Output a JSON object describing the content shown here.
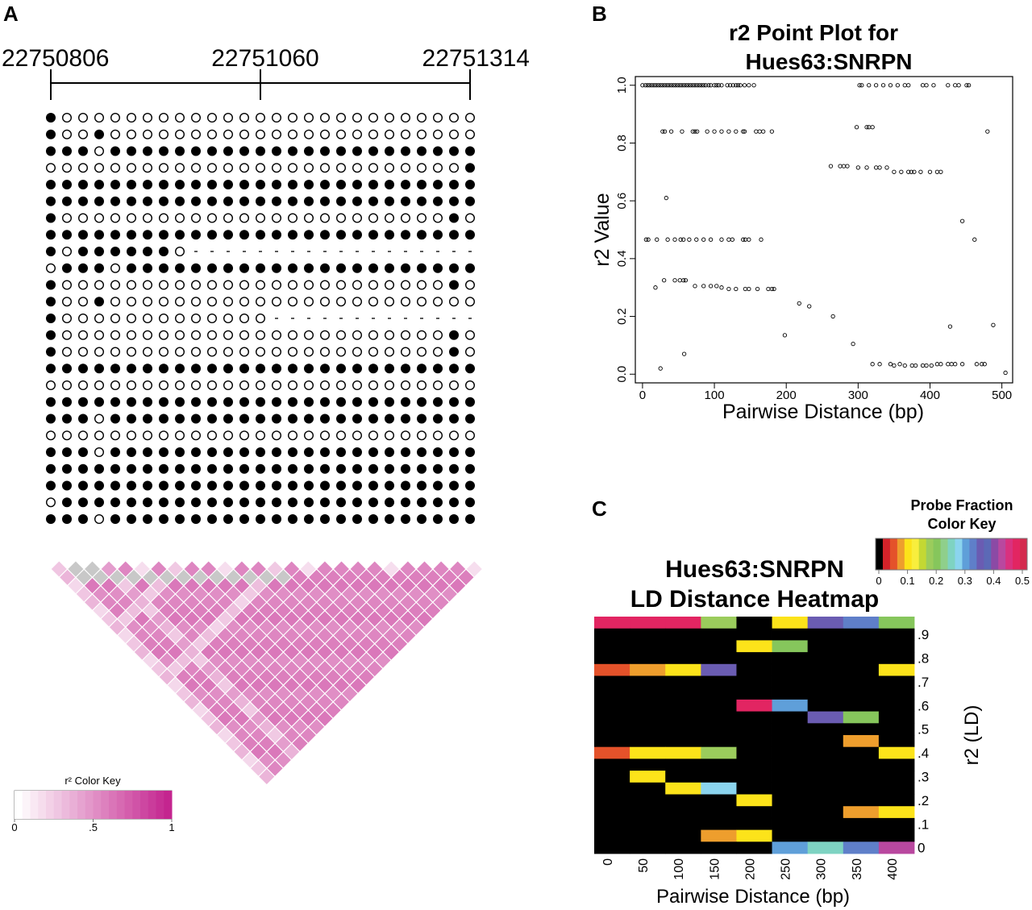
{
  "panels": {
    "a": "A",
    "b": "B",
    "c": "C"
  },
  "chart_data": [
    {
      "id": "A-methylation",
      "type": "table",
      "ruler_labels": [
        "22750806",
        "22751060",
        "22751314"
      ],
      "columns": 27,
      "row_encoding": "1 = filled circle (methylated), 0 = open circle (unmethylated), - = dash (missing)",
      "rows": [
        "100000000000000000000000000",
        "100100000000000000000000000",
        "111011111111111111111111111",
        "000000000000000000000000001",
        "111111111111111111111111111",
        "111111111111111111111111111",
        "100000000000000000000000010",
        "111111111111111111111111111",
        "101111110------------------",
        "011101111111111111111111111",
        "100000000000000000000000010",
        "100100000000000000000000000",
        "10000000000000-------------",
        "100000000000000000000000010",
        "100000000000000000000000010",
        "111111111111111111111111111",
        "000000000000000000000000000",
        "111111111111111111111111111",
        "111011111111111111111111111",
        "000000000000000000000000000",
        "111011111111111111111111111",
        "111111111111111111111111111",
        "111111111111111111111111111",
        "011111111111111111111111111",
        "111011111111111111111111111"
      ],
      "ld_triangle": {
        "colormap": "white to magenta",
        "missing_color": "#c8c8c8",
        "typical_r2": 0.6
      },
      "color_key": {
        "title": "r² Color Key",
        "ticks": [
          "0",
          ".5",
          "1"
        ],
        "low_color": "#ffffff",
        "high_color": "#c4258f"
      }
    },
    {
      "id": "B-point-plot",
      "type": "scatter",
      "title": "r2 Point Plot for",
      "subtitle": "Hues63:SNRPN",
      "xlabel": "Pairwise Distance (bp)",
      "ylabel": "r2 Value",
      "xlim": [
        -10,
        515
      ],
      "ylim": [
        -0.03,
        1.03
      ],
      "xticks": [
        0,
        100,
        200,
        300,
        400,
        500
      ],
      "yticks": [
        0.0,
        0.2,
        0.4,
        0.6,
        0.8,
        1.0
      ],
      "points": [
        [
          0,
          1
        ],
        [
          4,
          1
        ],
        [
          7,
          1
        ],
        [
          10,
          1
        ],
        [
          13,
          1
        ],
        [
          16,
          1
        ],
        [
          19,
          1
        ],
        [
          22,
          1
        ],
        [
          25,
          1
        ],
        [
          28,
          1
        ],
        [
          31,
          1
        ],
        [
          34,
          1
        ],
        [
          37,
          1
        ],
        [
          40,
          1
        ],
        [
          43,
          1
        ],
        [
          46,
          1
        ],
        [
          49,
          1
        ],
        [
          52,
          1
        ],
        [
          55,
          1
        ],
        [
          58,
          1
        ],
        [
          61,
          1
        ],
        [
          64,
          1
        ],
        [
          67,
          1
        ],
        [
          70,
          1
        ],
        [
          73,
          1
        ],
        [
          76,
          1
        ],
        [
          79,
          1
        ],
        [
          82,
          1
        ],
        [
          85,
          1
        ],
        [
          88,
          1
        ],
        [
          92,
          1
        ],
        [
          95,
          1
        ],
        [
          100,
          1
        ],
        [
          103,
          1
        ],
        [
          106,
          1
        ],
        [
          110,
          1
        ],
        [
          118,
          1
        ],
        [
          122,
          1
        ],
        [
          126,
          1
        ],
        [
          130,
          1
        ],
        [
          133,
          1
        ],
        [
          136,
          1
        ],
        [
          142,
          1
        ],
        [
          148,
          1
        ],
        [
          155,
          1
        ],
        [
          302,
          1
        ],
        [
          305,
          1
        ],
        [
          315,
          1
        ],
        [
          325,
          1
        ],
        [
          335,
          1
        ],
        [
          345,
          1
        ],
        [
          355,
          1
        ],
        [
          365,
          1
        ],
        [
          370,
          1
        ],
        [
          390,
          1
        ],
        [
          395,
          1
        ],
        [
          405,
          1
        ],
        [
          425,
          1
        ],
        [
          435,
          1
        ],
        [
          440,
          1
        ],
        [
          451,
          1
        ],
        [
          454,
          1
        ],
        [
          28,
          0.84
        ],
        [
          31,
          0.84
        ],
        [
          40,
          0.84
        ],
        [
          55,
          0.84
        ],
        [
          70,
          0.84
        ],
        [
          73,
          0.84
        ],
        [
          76,
          0.84
        ],
        [
          90,
          0.84
        ],
        [
          100,
          0.84
        ],
        [
          110,
          0.84
        ],
        [
          120,
          0.84
        ],
        [
          130,
          0.84
        ],
        [
          140,
          0.84
        ],
        [
          142,
          0.84
        ],
        [
          158,
          0.84
        ],
        [
          163,
          0.84
        ],
        [
          168,
          0.84
        ],
        [
          180,
          0.84
        ],
        [
          480,
          0.84
        ],
        [
          298,
          0.855
        ],
        [
          312,
          0.855
        ],
        [
          315,
          0.855
        ],
        [
          320,
          0.855
        ],
        [
          262,
          0.72
        ],
        [
          275,
          0.72
        ],
        [
          280,
          0.72
        ],
        [
          285,
          0.72
        ],
        [
          300,
          0.715
        ],
        [
          312,
          0.715
        ],
        [
          325,
          0.715
        ],
        [
          330,
          0.715
        ],
        [
          340,
          0.715
        ],
        [
          350,
          0.7
        ],
        [
          360,
          0.7
        ],
        [
          370,
          0.7
        ],
        [
          374,
          0.7
        ],
        [
          378,
          0.7
        ],
        [
          387,
          0.7
        ],
        [
          400,
          0.7
        ],
        [
          410,
          0.7
        ],
        [
          415,
          0.7
        ],
        [
          33,
          0.61
        ],
        [
          5,
          0.466
        ],
        [
          8,
          0.466
        ],
        [
          20,
          0.466
        ],
        [
          35,
          0.466
        ],
        [
          45,
          0.466
        ],
        [
          53,
          0.466
        ],
        [
          57,
          0.466
        ],
        [
          65,
          0.466
        ],
        [
          75,
          0.466
        ],
        [
          85,
          0.466
        ],
        [
          95,
          0.466
        ],
        [
          110,
          0.466
        ],
        [
          120,
          0.466
        ],
        [
          125,
          0.466
        ],
        [
          140,
          0.466
        ],
        [
          143,
          0.466
        ],
        [
          148,
          0.466
        ],
        [
          165,
          0.466
        ],
        [
          462,
          0.466
        ],
        [
          445,
          0.53
        ],
        [
          30,
          0.325
        ],
        [
          45,
          0.325
        ],
        [
          52,
          0.325
        ],
        [
          57,
          0.325
        ],
        [
          60,
          0.325
        ],
        [
          18,
          0.3
        ],
        [
          73,
          0.305
        ],
        [
          85,
          0.305
        ],
        [
          95,
          0.305
        ],
        [
          103,
          0.305
        ],
        [
          110,
          0.3
        ],
        [
          120,
          0.295
        ],
        [
          130,
          0.295
        ],
        [
          143,
          0.295
        ],
        [
          148,
          0.295
        ],
        [
          160,
          0.295
        ],
        [
          175,
          0.295
        ],
        [
          180,
          0.295
        ],
        [
          183,
          0.295
        ],
        [
          218,
          0.245
        ],
        [
          232,
          0.235
        ],
        [
          265,
          0.2
        ],
        [
          198,
          0.135
        ],
        [
          293,
          0.105
        ],
        [
          58,
          0.07
        ],
        [
          25,
          0.02
        ],
        [
          428,
          0.165
        ],
        [
          488,
          0.17
        ],
        [
          320,
          0.035
        ],
        [
          330,
          0.035
        ],
        [
          345,
          0.035
        ],
        [
          350,
          0.03
        ],
        [
          358,
          0.035
        ],
        [
          365,
          0.03
        ],
        [
          375,
          0.03
        ],
        [
          380,
          0.03
        ],
        [
          390,
          0.03
        ],
        [
          395,
          0.03
        ],
        [
          402,
          0.03
        ],
        [
          410,
          0.035
        ],
        [
          415,
          0.035
        ],
        [
          425,
          0.035
        ],
        [
          430,
          0.035
        ],
        [
          435,
          0.035
        ],
        [
          445,
          0.035
        ],
        [
          465,
          0.035
        ],
        [
          472,
          0.035
        ],
        [
          476,
          0.035
        ],
        [
          505,
          0.005
        ]
      ]
    },
    {
      "id": "C-heatmap",
      "type": "heatmap",
      "title_line1": "Hues63:SNRPN",
      "title_line2": "LD Distance Heatmap",
      "xlabel": "Pairwise Distance (bp)",
      "ylabel": "r2 (LD)",
      "x_tick_labels": [
        "0",
        "50",
        "100",
        "150",
        "200",
        "250",
        "300",
        "350",
        "400"
      ],
      "x_tick_indices": [
        0.5,
        1.5,
        2.5,
        3.5,
        4.5,
        5.5,
        6.5,
        7.5,
        8.5
      ],
      "y_tick_labels": [
        ".9",
        ".8",
        ".7",
        ".6",
        ".5",
        ".4",
        ".3",
        ".2",
        ".1",
        "0"
      ],
      "y_tick_rows": [
        1,
        3,
        5,
        7,
        9,
        11,
        13,
        15,
        17,
        19
      ],
      "n_cols": 9,
      "n_rows": 20,
      "palette": [
        "#000000",
        "#d32229",
        "#e4522a",
        "#ee9e2d",
        "#fce31a",
        "#f8ee3d",
        "#c3d833",
        "#9bcc5c",
        "#86c65c",
        "#8fcf8b",
        "#7ed3c2",
        "#8bd4ee",
        "#5f9fd9",
        "#5f7fc9",
        "#6a5cb2",
        "#5c69b6",
        "#8b4aa5",
        "#b9489f",
        "#d9317f",
        "#e22562",
        "#d42b4e"
      ],
      "fraction_range": [
        0,
        0.5
      ],
      "cells": [
        [
          0.47,
          0.47,
          0.47,
          0.17,
          0,
          0.1,
          0.35,
          0.32,
          0.2
        ],
        [
          0,
          0,
          0,
          0,
          0,
          0,
          0,
          0,
          0
        ],
        [
          0,
          0,
          0,
          0,
          0.1,
          0.2,
          0,
          0,
          0
        ],
        [
          0,
          0,
          0,
          0,
          0,
          0,
          0,
          0,
          0
        ],
        [
          0.05,
          0.07,
          0.09,
          0.35,
          0,
          0,
          0,
          0,
          0.1
        ],
        [
          0,
          0,
          0,
          0,
          0,
          0,
          0,
          0,
          0
        ],
        [
          0,
          0,
          0,
          0,
          0,
          0,
          0,
          0,
          0
        ],
        [
          0,
          0,
          0,
          0,
          0.47,
          0.3,
          0,
          0,
          0
        ],
        [
          0,
          0,
          0,
          0,
          0,
          0,
          0.35,
          0.2,
          0
        ],
        [
          0,
          0,
          0,
          0,
          0,
          0,
          0,
          0,
          0
        ],
        [
          0,
          0,
          0,
          0,
          0,
          0,
          0,
          0.07,
          0
        ],
        [
          0.05,
          0.09,
          0.1,
          0.17,
          0,
          0,
          0,
          0,
          0.1
        ],
        [
          0,
          0,
          0,
          0,
          0,
          0,
          0,
          0,
          0
        ],
        [
          0,
          0.09,
          0,
          0,
          0,
          0,
          0,
          0,
          0
        ],
        [
          0,
          0,
          0.09,
          0.28,
          0,
          0,
          0,
          0,
          0
        ],
        [
          0,
          0,
          0,
          0,
          0.1,
          0,
          0,
          0,
          0
        ],
        [
          0,
          0,
          0,
          0,
          0,
          0,
          0,
          0.07,
          0.1
        ],
        [
          0,
          0,
          0,
          0,
          0,
          0,
          0,
          0,
          0
        ],
        [
          0,
          0,
          0,
          0.07,
          0.1,
          0,
          0,
          0,
          0
        ],
        [
          0,
          0,
          0,
          0,
          0,
          0.3,
          0.25,
          0.32,
          0.42
        ]
      ],
      "color_key": {
        "title_line1": "Probe Fraction",
        "title_line2": "Color Key",
        "ticks": [
          "0",
          "0.1",
          "0.2",
          "0.3",
          "0.4",
          "0.5"
        ],
        "tick_values": [
          0,
          0.1,
          0.2,
          0.3,
          0.4,
          0.5
        ]
      }
    }
  ]
}
